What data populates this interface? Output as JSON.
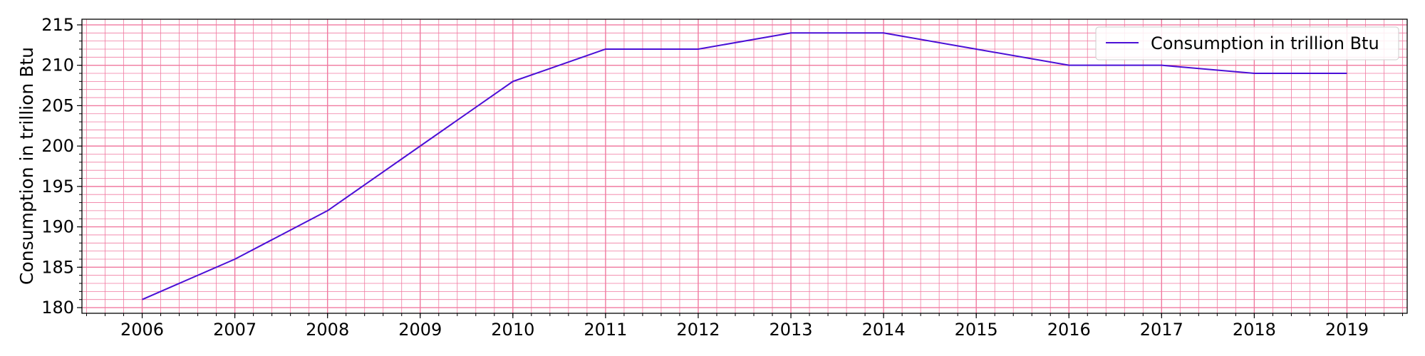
{
  "chart_data": {
    "type": "line",
    "title": "",
    "xlabel": "",
    "ylabel": "Consumption in trillion Btu",
    "x": [
      "2006",
      "2007",
      "2008",
      "2009",
      "2010",
      "2011",
      "2012",
      "2013",
      "2014",
      "2015",
      "2016",
      "2017",
      "2018",
      "2019"
    ],
    "series": [
      {
        "name": "Consumption in trillion Btu",
        "color": "#4b0fd6",
        "values": [
          181,
          186,
          192,
          200,
          208,
          212,
          212,
          214,
          214,
          212,
          210,
          210,
          209,
          209
        ]
      }
    ],
    "xlim": [
      2005.35,
      2019.65
    ],
    "ylim": [
      179.3,
      215.7
    ],
    "yticks": [
      180,
      185,
      190,
      195,
      200,
      205,
      210,
      215
    ],
    "grid": true,
    "minor_grid": true,
    "grid_color": "#f07aa0",
    "legend_position": "top-right"
  }
}
